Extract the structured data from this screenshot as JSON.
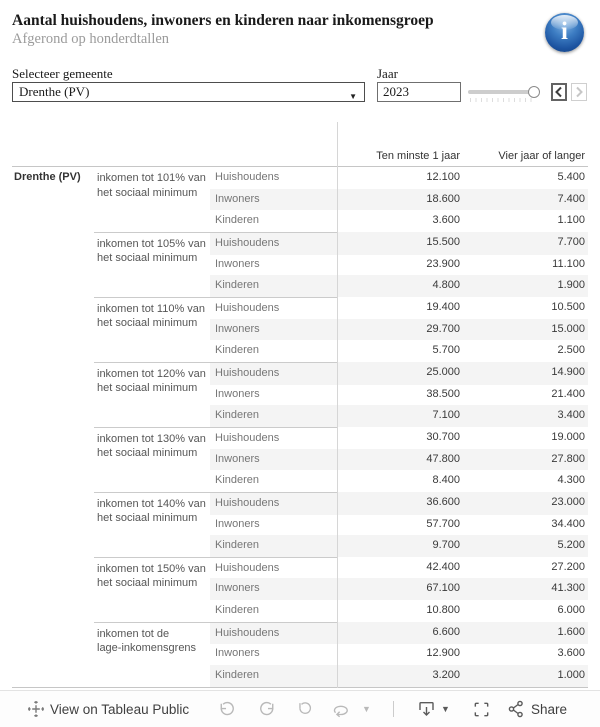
{
  "header": {
    "title": "Aantal huishoudens, inwoners en kinderen naar inkomensgroep",
    "subtitle": "Afgerond op honderdtallen",
    "info_icon_glyph": "i",
    "info_icon_color": "#2365ae"
  },
  "filters": {
    "gemeente": {
      "label": "Selecteer gemeente",
      "value": "Drenthe (PV)"
    },
    "jaar": {
      "label": "Jaar",
      "value": "2023",
      "slider_position": "max",
      "prev_button_enabled": true,
      "next_button_enabled": false
    }
  },
  "chart_data": {
    "type": "table",
    "title": "Aantal huishoudens, inwoners en kinderen naar inkomensgroep",
    "subtitle": "Afgerond op honderdtallen",
    "region": "Drenthe (PV)",
    "year": "2023",
    "columns": [
      "Ten minste 1 jaar",
      "Vier jaar of langer"
    ],
    "measures": [
      "Huishoudens",
      "Inwoners",
      "Kinderen"
    ],
    "groups": [
      {
        "income_group": "inkomen tot 101% van\nhet sociaal minimum",
        "rows": [
          {
            "label": "Huishoudens",
            "values": [
              "12.100",
              "5.400"
            ]
          },
          {
            "label": "Inwoners",
            "values": [
              "18.600",
              "7.400"
            ]
          },
          {
            "label": "Kinderen",
            "values": [
              "3.600",
              "1.100"
            ]
          }
        ]
      },
      {
        "income_group": "inkomen tot 105% van\nhet sociaal minimum",
        "rows": [
          {
            "label": "Huishoudens",
            "values": [
              "15.500",
              "7.700"
            ]
          },
          {
            "label": "Inwoners",
            "values": [
              "23.900",
              "11.100"
            ]
          },
          {
            "label": "Kinderen",
            "values": [
              "4.800",
              "1.900"
            ]
          }
        ]
      },
      {
        "income_group": "inkomen tot 110% van\nhet sociaal minimum",
        "rows": [
          {
            "label": "Huishoudens",
            "values": [
              "19.400",
              "10.500"
            ]
          },
          {
            "label": "Inwoners",
            "values": [
              "29.700",
              "15.000"
            ]
          },
          {
            "label": "Kinderen",
            "values": [
              "5.700",
              "2.500"
            ]
          }
        ]
      },
      {
        "income_group": "inkomen tot 120% van\nhet sociaal minimum",
        "rows": [
          {
            "label": "Huishoudens",
            "values": [
              "25.000",
              "14.900"
            ]
          },
          {
            "label": "Inwoners",
            "values": [
              "38.500",
              "21.400"
            ]
          },
          {
            "label": "Kinderen",
            "values": [
              "7.100",
              "3.400"
            ]
          }
        ]
      },
      {
        "income_group": "inkomen tot 130% van\nhet sociaal minimum",
        "rows": [
          {
            "label": "Huishoudens",
            "values": [
              "30.700",
              "19.000"
            ]
          },
          {
            "label": "Inwoners",
            "values": [
              "47.800",
              "27.800"
            ]
          },
          {
            "label": "Kinderen",
            "values": [
              "8.400",
              "4.300"
            ]
          }
        ]
      },
      {
        "income_group": "inkomen tot 140% van\nhet sociaal minimum",
        "rows": [
          {
            "label": "Huishoudens",
            "values": [
              "36.600",
              "23.000"
            ]
          },
          {
            "label": "Inwoners",
            "values": [
              "57.700",
              "34.400"
            ]
          },
          {
            "label": "Kinderen",
            "values": [
              "9.700",
              "5.200"
            ]
          }
        ]
      },
      {
        "income_group": "inkomen tot 150% van\nhet sociaal minimum",
        "rows": [
          {
            "label": "Huishoudens",
            "values": [
              "42.400",
              "27.200"
            ]
          },
          {
            "label": "Inwoners",
            "values": [
              "67.100",
              "41.300"
            ]
          },
          {
            "label": "Kinderen",
            "values": [
              "10.800",
              "6.000"
            ]
          }
        ]
      },
      {
        "income_group": "inkomen tot de\nlage-inkomensgrens",
        "rows": [
          {
            "label": "Huishoudens",
            "values": [
              "6.600",
              "1.600"
            ]
          },
          {
            "label": "Inwoners",
            "values": [
              "12.900",
              "3.600"
            ]
          },
          {
            "label": "Kinderen",
            "values": [
              "3.200",
              "1.000"
            ]
          }
        ]
      }
    ],
    "layout_hints": {
      "row_banding": true,
      "band_color": "#f4f4f4",
      "grid": "minimal"
    }
  },
  "toolbar": {
    "view_label": "View on Tableau Public",
    "share_label": "Share",
    "icons": [
      "tableau-logo-icon",
      "undo-icon",
      "redo-icon",
      "revert-icon",
      "refresh-icon",
      "caret-down-icon",
      "download-icon",
      "caret-down-icon",
      "fullscreen-icon",
      "share-icon"
    ],
    "disabled_icon_color": "#b9b9b9",
    "enabled_icon_color": "#5a5a5a"
  }
}
